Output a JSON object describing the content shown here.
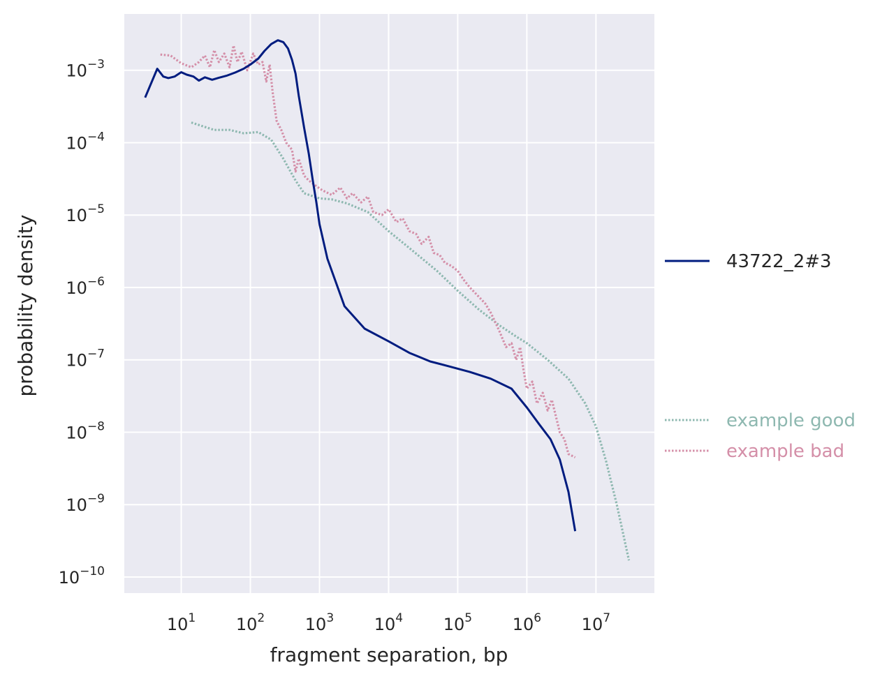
{
  "chart_data": {
    "type": "line",
    "xscale": "log",
    "yscale": "log",
    "xlabel": "fragment separation, bp",
    "ylabel": "probability density",
    "xlim": [
      1.5,
      70000000
    ],
    "ylim": [
      6e-11,
      0.006
    ],
    "grid": true,
    "x_tick_exponents": [
      1,
      2,
      3,
      4,
      5,
      6,
      7
    ],
    "y_tick_exponents": [
      -3,
      -4,
      -5,
      -6,
      -7,
      -8,
      -9,
      -10
    ],
    "series": [
      {
        "name": "43722_2#3",
        "color": "#001c7f",
        "style": "solid",
        "legend_group": "top",
        "points": [
          [
            3,
            0.00042
          ],
          [
            4.5,
            0.00105
          ],
          [
            5.5,
            0.00082
          ],
          [
            6.5,
            0.00078
          ],
          [
            8,
            0.00082
          ],
          [
            10,
            0.00094
          ],
          [
            12,
            0.00087
          ],
          [
            15,
            0.00082
          ],
          [
            18,
            0.00072
          ],
          [
            22,
            0.0008
          ],
          [
            28,
            0.00074
          ],
          [
            35,
            0.00079
          ],
          [
            45,
            0.00084
          ],
          [
            60,
            0.00093
          ],
          [
            80,
            0.00105
          ],
          [
            100,
            0.0012
          ],
          [
            130,
            0.00145
          ],
          [
            160,
            0.00185
          ],
          [
            200,
            0.0023
          ],
          [
            250,
            0.0026
          ],
          [
            300,
            0.00245
          ],
          [
            350,
            0.002
          ],
          [
            400,
            0.0014
          ],
          [
            450,
            0.0009
          ],
          [
            500,
            0.00045
          ],
          [
            600,
            0.00016
          ],
          [
            700,
            7e-05
          ],
          [
            800,
            3e-05
          ],
          [
            900,
            1.5e-05
          ],
          [
            1000,
            7.5e-06
          ],
          [
            1300,
            2.5e-06
          ],
          [
            2300,
            5.5e-07
          ],
          [
            4500,
            2.7e-07
          ],
          [
            10000,
            1.8e-07
          ],
          [
            20000,
            1.25e-07
          ],
          [
            40000,
            9.5e-08
          ],
          [
            80000,
            8e-08
          ],
          [
            150000,
            6.8e-08
          ],
          [
            300000,
            5.5e-08
          ],
          [
            600000,
            4e-08
          ],
          [
            1000000,
            2.2e-08
          ],
          [
            1500000,
            1.3e-08
          ],
          [
            2200000,
            8e-09
          ],
          [
            3000000,
            4.2e-09
          ],
          [
            4000000,
            1.5e-09
          ],
          [
            5000000,
            4.3e-10
          ]
        ]
      },
      {
        "name": "example good",
        "color": "#8eb8b0",
        "style": "dotted",
        "legend_group": "bottom",
        "points": [
          [
            14,
            0.00019
          ],
          [
            20,
            0.00017
          ],
          [
            30,
            0.00015
          ],
          [
            50,
            0.00015
          ],
          [
            80,
            0.000135
          ],
          [
            130,
            0.00014
          ],
          [
            200,
            0.00011
          ],
          [
            300,
            6e-05
          ],
          [
            450,
            3e-05
          ],
          [
            600,
            2e-05
          ],
          [
            1000,
            1.7e-05
          ],
          [
            1500,
            1.65e-05
          ],
          [
            2500,
            1.45e-05
          ],
          [
            5000,
            1.1e-05
          ],
          [
            10000,
            6e-06
          ],
          [
            20000,
            3.5e-06
          ],
          [
            50000,
            1.7e-06
          ],
          [
            100000,
            9e-07
          ],
          [
            200000,
            5e-07
          ],
          [
            400000,
            3e-07
          ],
          [
            700000,
            2.1e-07
          ],
          [
            1000000,
            1.7e-07
          ],
          [
            2000000,
            1e-07
          ],
          [
            4000000,
            5.5e-08
          ],
          [
            7000000,
            2.5e-08
          ],
          [
            10000000,
            1.2e-08
          ],
          [
            14000000,
            4e-09
          ],
          [
            20000000,
            1e-09
          ],
          [
            30000000,
            1.7e-10
          ]
        ]
      },
      {
        "name": "example bad",
        "color": "#d48fa8",
        "style": "dotted",
        "legend_group": "bottom",
        "points": [
          [
            5,
            0.00165
          ],
          [
            7,
            0.0016
          ],
          [
            10,
            0.00125
          ],
          [
            14,
            0.0011
          ],
          [
            18,
            0.0013
          ],
          [
            22,
            0.0016
          ],
          [
            26,
            0.0011
          ],
          [
            30,
            0.0019
          ],
          [
            35,
            0.0013
          ],
          [
            42,
            0.0017
          ],
          [
            50,
            0.0011
          ],
          [
            57,
            0.0022
          ],
          [
            65,
            0.0013
          ],
          [
            75,
            0.0018
          ],
          [
            90,
            0.001
          ],
          [
            110,
            0.0017
          ],
          [
            130,
            0.0012
          ],
          [
            150,
            0.0013
          ],
          [
            170,
            0.0007
          ],
          [
            190,
            0.0012
          ],
          [
            210,
            0.0005
          ],
          [
            240,
            0.0002
          ],
          [
            280,
            0.00015
          ],
          [
            330,
            0.0001
          ],
          [
            400,
            8e-05
          ],
          [
            450,
            4e-05
          ],
          [
            500,
            6e-05
          ],
          [
            600,
            3.5e-05
          ],
          [
            700,
            3e-05
          ],
          [
            900,
            2.5e-05
          ],
          [
            1100,
            2.2e-05
          ],
          [
            1500,
            1.9e-05
          ],
          [
            2000,
            2.4e-05
          ],
          [
            2500,
            1.7e-05
          ],
          [
            3000,
            2e-05
          ],
          [
            4000,
            1.5e-05
          ],
          [
            5000,
            1.8e-05
          ],
          [
            6000,
            1.1e-05
          ],
          [
            8000,
            1e-05
          ],
          [
            10000,
            1.2e-05
          ],
          [
            13000,
            8e-06
          ],
          [
            16000,
            9e-06
          ],
          [
            20000,
            6e-06
          ],
          [
            25000,
            5.5e-06
          ],
          [
            30000,
            4e-06
          ],
          [
            38000,
            5e-06
          ],
          [
            45000,
            3e-06
          ],
          [
            55000,
            2.8e-06
          ],
          [
            65000,
            2.2e-06
          ],
          [
            80000,
            2e-06
          ],
          [
            100000,
            1.7e-06
          ],
          [
            120000,
            1.3e-06
          ],
          [
            150000,
            1e-06
          ],
          [
            200000,
            7.5e-07
          ],
          [
            250000,
            6e-07
          ],
          [
            300000,
            4.5e-07
          ],
          [
            350000,
            3.3e-07
          ],
          [
            400000,
            2.5e-07
          ],
          [
            500000,
            1.5e-07
          ],
          [
            600000,
            1.7e-07
          ],
          [
            700000,
            1e-07
          ],
          [
            800000,
            1.5e-07
          ],
          [
            900000,
            7e-08
          ],
          [
            1000000,
            4e-08
          ],
          [
            1200000,
            5e-08
          ],
          [
            1400000,
            2.5e-08
          ],
          [
            1700000,
            3.5e-08
          ],
          [
            2000000,
            2e-08
          ],
          [
            2300000,
            2.8e-08
          ],
          [
            2700000,
            1.5e-08
          ],
          [
            3000000,
            1e-08
          ],
          [
            3500000,
            8e-09
          ],
          [
            4000000,
            5e-09
          ],
          [
            5000000,
            4.5e-09
          ]
        ]
      }
    ]
  }
}
